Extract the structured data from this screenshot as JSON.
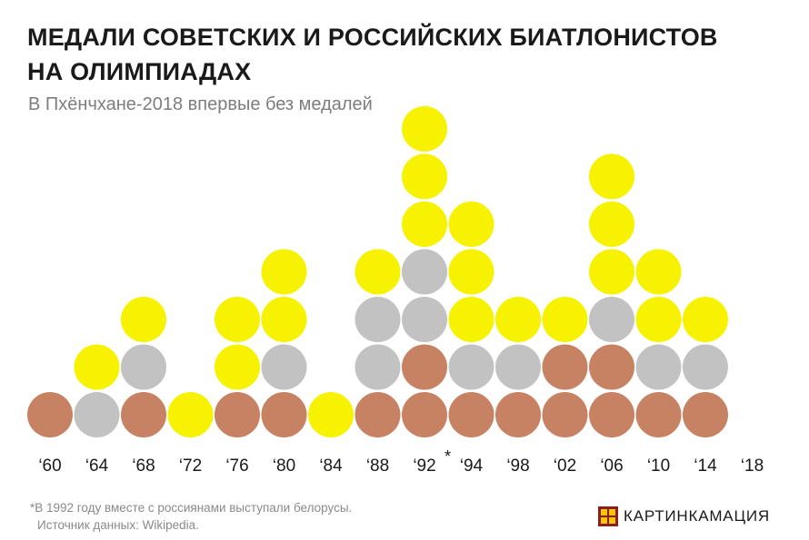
{
  "header": {
    "title_line1": "МЕДАЛИ СОВЕТСКИХ И РОССИЙСКИХ БИАТЛОНИСТОВ",
    "title_line2": "НА ОЛИМПИАДАХ",
    "subtitle": "В Пхёнчхане-2018 впервые без медалей"
  },
  "footer": {
    "footnote": "*В 1992 году вместе с россиянами выступали белорусы.",
    "source": "Источник данных: Wikipedia.",
    "brand": "КАРТИНКАМАЦИЯ"
  },
  "colors": {
    "gold": "#f7f200",
    "silver": "#c2c2c2",
    "bronze": "#c68262",
    "brand_logo": "#8b1f1f"
  },
  "chart_data": {
    "type": "stacked-dot",
    "stack_order": [
      "bronze",
      "silver",
      "gold"
    ],
    "categories": [
      "‘60",
      "‘64",
      "‘68",
      "‘72",
      "‘76",
      "‘80",
      "‘84",
      "‘88",
      "‘92",
      "‘94",
      "‘98",
      "‘02",
      "‘06",
      "‘10",
      "‘14",
      "‘18"
    ],
    "category_marks": [
      "",
      "",
      "",
      "",
      "",
      "",
      "",
      "",
      "*",
      "",
      "",
      "",
      "",
      "",
      "",
      ""
    ],
    "series": [
      {
        "key": "bronze",
        "values": [
          1,
          0,
          1,
          0,
          1,
          1,
          0,
          1,
          2,
          1,
          1,
          2,
          2,
          1,
          1,
          0
        ]
      },
      {
        "key": "silver",
        "values": [
          0,
          1,
          1,
          0,
          0,
          1,
          0,
          2,
          2,
          1,
          1,
          0,
          1,
          1,
          1,
          0
        ]
      },
      {
        "key": "gold",
        "values": [
          0,
          1,
          1,
          1,
          2,
          2,
          1,
          1,
          3,
          3,
          1,
          1,
          3,
          2,
          1,
          0
        ]
      }
    ]
  }
}
